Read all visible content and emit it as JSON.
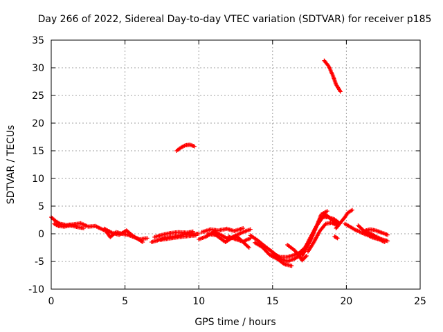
{
  "chart_data": {
    "type": "scatter",
    "title": "Day 266 of 2022, Sidereal Day-to-day VTEC variation (SDTVAR) for receiver p185",
    "xlabel": "GPS time / hours",
    "ylabel": "SDTVAR / TECUs",
    "xlim": [
      0,
      25
    ],
    "ylim": [
      -10,
      35
    ],
    "xticks": [
      0,
      5,
      10,
      15,
      20,
      25
    ],
    "yticks": [
      -10,
      -5,
      0,
      5,
      10,
      15,
      20,
      25,
      30,
      35
    ],
    "grid": true,
    "legend": "none",
    "series": [
      {
        "name": "SDTVAR",
        "color": "#ff0000",
        "marker": "plus",
        "tracks": [
          {
            "x": [
              0.0,
              0.3,
              0.6,
              1.0,
              1.5,
              2.0,
              2.5,
              3.0,
              3.3,
              3.7,
              4.0,
              4.4,
              4.8,
              5.2,
              5.6,
              6.0,
              6.5
            ],
            "y": [
              3.0,
              2.3,
              1.8,
              1.6,
              1.7,
              1.9,
              1.3,
              1.4,
              1.0,
              0.5,
              -0.6,
              0.3,
              0.0,
              -0.2,
              -0.6,
              -1.0,
              -0.8
            ]
          },
          {
            "x": [
              0.2,
              0.5,
              0.9,
              1.3,
              1.8,
              2.2
            ],
            "y": [
              1.8,
              1.4,
              1.3,
              1.5,
              1.2,
              1.0
            ]
          },
          {
            "x": [
              3.6,
              4.1,
              4.6,
              5.1,
              5.5,
              6.2
            ],
            "y": [
              0.9,
              0.2,
              -0.2,
              0.6,
              -0.3,
              -1.5
            ]
          },
          {
            "x": [
              6.8,
              7.2,
              7.6,
              8.0,
              8.5,
              9.0,
              9.5,
              10.0
            ],
            "y": [
              -1.5,
              -1.2,
              -0.8,
              -0.6,
              -0.4,
              -0.2,
              0.0,
              0.0
            ]
          },
          {
            "x": [
              7.0,
              7.5,
              8.0,
              8.6,
              9.2,
              9.6
            ],
            "y": [
              -0.6,
              -0.2,
              0.1,
              0.3,
              0.2,
              0.4
            ]
          },
          {
            "x": [
              7.4,
              7.9,
              8.4,
              9.0,
              9.8
            ],
            "y": [
              -1.1,
              -0.9,
              -0.7,
              -0.5,
              -0.3
            ]
          },
          {
            "x": [
              8.5,
              8.8,
              9.1,
              9.4,
              9.7
            ],
            "y": [
              15.0,
              15.6,
              16.0,
              16.1,
              15.8
            ]
          },
          {
            "x": [
              10.0,
              10.5,
              11.0,
              11.5,
              12.0,
              12.5,
              13.0,
              13.5
            ],
            "y": [
              -1.0,
              -0.5,
              0.3,
              -0.2,
              -1.0,
              -0.3,
              0.3,
              0.8
            ]
          },
          {
            "x": [
              10.2,
              10.8,
              11.3,
              11.9,
              12.4,
              13.0
            ],
            "y": [
              0.3,
              0.8,
              0.6,
              0.9,
              0.5,
              1.0
            ]
          },
          {
            "x": [
              10.6,
              11.2,
              11.8,
              12.2,
              12.6,
              13.0,
              13.4
            ],
            "y": [
              0.0,
              -0.3,
              -1.5,
              -0.8,
              -0.5,
              -1.5,
              -2.5
            ]
          },
          {
            "x": [
              12.0,
              12.5,
              13.0,
              13.5
            ],
            "y": [
              -0.5,
              -1.0,
              -1.4,
              -0.8
            ]
          },
          {
            "x": [
              13.5,
              14.0,
              14.5,
              15.0,
              15.5,
              16.0,
              16.5,
              16.8,
              17.0
            ],
            "y": [
              -0.3,
              -1.2,
              -2.3,
              -3.3,
              -4.5,
              -5.0,
              -4.5,
              -4.0,
              -3.2
            ]
          },
          {
            "x": [
              13.8,
              14.3,
              14.8,
              15.3,
              15.8,
              16.3
            ],
            "y": [
              -1.6,
              -2.4,
              -3.8,
              -4.5,
              -5.5,
              -5.8
            ]
          },
          {
            "x": [
              15.0,
              15.5,
              16.0,
              16.5,
              17.0
            ],
            "y": [
              -3.5,
              -4.2,
              -4.2,
              -3.8,
              -3.3
            ]
          },
          {
            "x": [
              16.0,
              16.5,
              16.8,
              17.0,
              17.3
            ],
            "y": [
              -2.0,
              -3.0,
              -4.0,
              -4.8,
              -4.0
            ]
          },
          {
            "x": [
              16.8,
              17.2,
              17.6,
              18.0,
              18.4,
              18.8,
              19.2,
              19.5
            ],
            "y": [
              -3.5,
              -2.5,
              -0.5,
              1.5,
              3.0,
              3.0,
              2.6,
              2.0
            ]
          },
          {
            "x": [
              17.0,
              17.4,
              17.8,
              18.2,
              18.6,
              19.0,
              19.4
            ],
            "y": [
              -4.0,
              -2.0,
              0.5,
              2.5,
              3.5,
              2.5,
              1.8
            ]
          },
          {
            "x": [
              17.2,
              17.6,
              18.0,
              18.3,
              18.7
            ],
            "y": [
              -3.0,
              -1.0,
              1.5,
              3.5,
              4.1
            ]
          },
          {
            "x": [
              17.4,
              17.8,
              18.2,
              18.6,
              19.0,
              19.3
            ],
            "y": [
              -3.2,
              -1.5,
              0.5,
              1.8,
              2.0,
              1.6
            ]
          },
          {
            "x": [
              18.5,
              18.8,
              19.1,
              19.3,
              19.6
            ],
            "y": [
              31.3,
              30.3,
              28.5,
              27.0,
              25.7
            ]
          },
          {
            "x": [
              19.3,
              19.6,
              19.9,
              20.1,
              20.4
            ],
            "y": [
              1.0,
              2.0,
              3.0,
              3.8,
              4.3
            ]
          },
          {
            "x": [
              19.9,
              20.3,
              20.6,
              20.9
            ],
            "y": [
              1.8,
              1.2,
              0.7,
              0.4
            ]
          },
          {
            "x": [
              19.2,
              19.4
            ],
            "y": [
              -0.5,
              -0.8
            ]
          },
          {
            "x": [
              20.8,
              21.2,
              21.6,
              22.0,
              22.4,
              22.8
            ],
            "y": [
              1.5,
              0.5,
              0.1,
              -0.5,
              -1.0,
              -1.3
            ]
          },
          {
            "x": [
              21.0,
              21.4,
              21.8,
              22.2,
              22.6
            ],
            "y": [
              0.2,
              -0.2,
              -0.7,
              -1.0,
              -1.5
            ]
          },
          {
            "x": [
              21.2,
              21.6,
              22.0,
              22.4,
              22.8
            ],
            "y": [
              0.5,
              0.8,
              0.6,
              0.2,
              -0.2
            ]
          }
        ]
      }
    ]
  }
}
